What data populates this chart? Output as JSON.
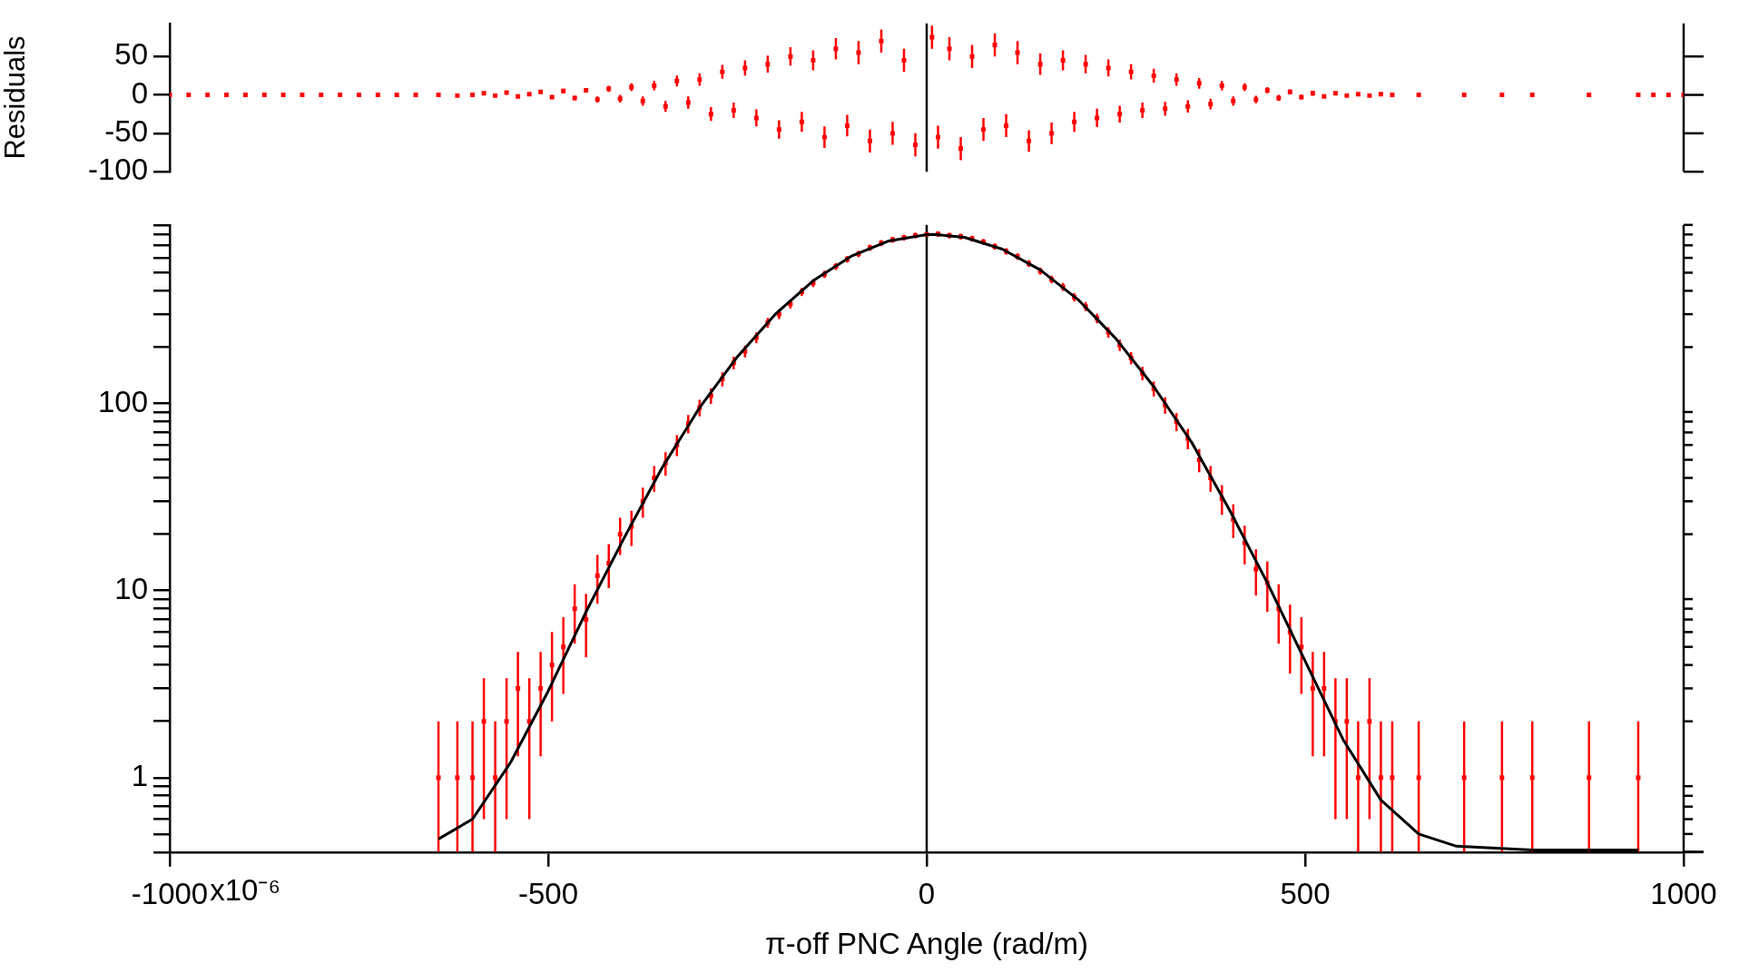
{
  "chart_data": [
    {
      "type": "scatter",
      "ylabel": "Residuals",
      "xlim": [
        -1000,
        1000
      ],
      "ylim": [
        -100,
        93
      ],
      "yticks": [
        -100,
        -50,
        0,
        50
      ],
      "tick_labels": "y",
      "grid": false,
      "marker": "square",
      "ref_lines": [
        {
          "axis": "x",
          "value": 0,
          "color": "#000000"
        }
      ],
      "series": [
        {
          "color": "#ff0000",
          "x": [
            -1000,
            -975,
            -950,
            -925,
            -900,
            -875,
            -850,
            -825,
            -800,
            -775,
            -750,
            -725,
            -700,
            -675,
            -645,
            -620,
            -600,
            -585,
            -570,
            -555,
            -540,
            -525,
            -510,
            -495,
            -480,
            -465,
            -450,
            -435,
            -420,
            -405,
            -390,
            -375,
            -360,
            -345,
            -330,
            -315,
            -300,
            -285,
            -270,
            -255,
            -240,
            -225,
            -210,
            -195,
            -180,
            -165,
            -150,
            -135,
            -120,
            -105,
            -90,
            -75,
            -60,
            -45,
            -30,
            -15,
            7,
            15,
            30,
            45,
            60,
            75,
            90,
            105,
            120,
            135,
            150,
            165,
            180,
            195,
            210,
            225,
            240,
            255,
            270,
            285,
            300,
            315,
            330,
            345,
            360,
            375,
            390,
            405,
            420,
            435,
            450,
            465,
            480,
            495,
            510,
            525,
            540,
            555,
            570,
            585,
            600,
            615,
            650,
            710,
            760,
            800,
            875,
            940,
            960,
            980,
            1000
          ],
          "values": [
            0,
            0,
            0,
            0,
            0,
            0,
            0,
            0,
            0,
            0,
            0,
            0,
            0,
            0,
            0,
            -1,
            0,
            2,
            -1,
            3,
            -2,
            1,
            4,
            -3,
            5,
            -4,
            6,
            -6,
            8,
            -5,
            10,
            -8,
            12,
            -15,
            18,
            -10,
            20,
            -25,
            30,
            -20,
            35,
            -30,
            40,
            -45,
            50,
            -35,
            45,
            -55,
            60,
            -40,
            55,
            -60,
            70,
            -50,
            45,
            -65,
            75,
            -55,
            60,
            -70,
            50,
            -45,
            65,
            -40,
            55,
            -60,
            40,
            -50,
            45,
            -35,
            40,
            -30,
            35,
            -25,
            30,
            -20,
            25,
            -18,
            20,
            -15,
            15,
            -12,
            12,
            -8,
            10,
            -6,
            6,
            -4,
            4,
            -3,
            2,
            -2,
            2,
            -1,
            1,
            -1,
            1,
            0,
            0,
            0,
            0,
            0,
            0,
            0,
            0,
            0,
            0
          ],
          "errors": [
            null,
            null,
            null,
            null,
            null,
            null,
            null,
            null,
            null,
            null,
            null,
            null,
            null,
            null,
            2,
            2,
            2,
            2,
            2,
            2,
            2,
            2,
            2,
            2,
            3,
            3,
            3,
            4,
            4,
            5,
            5,
            6,
            6,
            7,
            7,
            8,
            8,
            9,
            9,
            10,
            10,
            11,
            11,
            12,
            12,
            13,
            13,
            14,
            14,
            14,
            15,
            15,
            15,
            15,
            15,
            15,
            15,
            15,
            15,
            15,
            15,
            15,
            15,
            15,
            15,
            14,
            14,
            14,
            13,
            13,
            12,
            12,
            11,
            11,
            10,
            10,
            9,
            9,
            8,
            8,
            7,
            7,
            6,
            6,
            5,
            5,
            4,
            4,
            3,
            3,
            3,
            2,
            2,
            2,
            2,
            2,
            2,
            2,
            1,
            1,
            1,
            1,
            1,
            1,
            null,
            null,
            null
          ]
        }
      ]
    },
    {
      "type": "scatter",
      "xlabel": "π-off PNC Angle (rad/m)",
      "xlim": [
        -1000,
        1000
      ],
      "xticks": [
        -1000,
        -500,
        0,
        500,
        1000
      ],
      "annotations": [
        "x10⁻⁶"
      ],
      "ylim": [
        0.4,
        900
      ],
      "log": "y",
      "grid": false,
      "marker": "square",
      "yticks": [
        {
          "value": 0.4,
          "label": null
        },
        {
          "value": 0.5,
          "label": null
        },
        {
          "value": 0.6,
          "label": null
        },
        {
          "value": 0.7,
          "label": null
        },
        {
          "value": 0.8,
          "label": null
        },
        {
          "value": 0.9,
          "label": null
        },
        1,
        {
          "value": 2,
          "label": null
        },
        {
          "value": 3,
          "label": null
        },
        {
          "value": 4,
          "label": null
        },
        {
          "value": 5,
          "label": null
        },
        {
          "value": 6,
          "label": null
        },
        {
          "value": 7,
          "label": null
        },
        {
          "value": 8,
          "label": null
        },
        {
          "value": 9,
          "label": null
        },
        10,
        {
          "value": 20,
          "label": null
        },
        {
          "value": 30,
          "label": null
        },
        {
          "value": 40,
          "label": null
        },
        {
          "value": 50,
          "label": null
        },
        {
          "value": 60,
          "label": null
        },
        {
          "value": 70,
          "label": null
        },
        {
          "value": 80,
          "label": null
        },
        {
          "value": 90,
          "label": null
        },
        100,
        {
          "value": 200,
          "label": null
        },
        {
          "value": 300,
          "label": null
        },
        {
          "value": 400,
          "label": null
        },
        {
          "value": 500,
          "label": null
        },
        {
          "value": 600,
          "label": null
        },
        {
          "value": 700,
          "label": null
        },
        {
          "value": 800,
          "label": null
        },
        {
          "value": 900,
          "label": null
        }
      ],
      "ref_lines": [
        {
          "axis": "x",
          "value": 0,
          "color": "#000000"
        }
      ],
      "series": [
        {
          "color": "#ff0000",
          "x": [
            -645,
            -620,
            -600,
            -585,
            -570,
            -555,
            -540,
            -525,
            -510,
            -495,
            -480,
            -465,
            -450,
            -435,
            -420,
            -405,
            -390,
            -375,
            -360,
            -345,
            -330,
            -315,
            -300,
            -285,
            -270,
            -255,
            -240,
            -225,
            -210,
            -195,
            -180,
            -165,
            -150,
            -135,
            -120,
            -105,
            -90,
            -75,
            -60,
            -45,
            -30,
            -15,
            0,
            15,
            30,
            45,
            60,
            75,
            90,
            105,
            120,
            135,
            150,
            165,
            180,
            195,
            210,
            225,
            240,
            255,
            270,
            285,
            300,
            315,
            330,
            345,
            360,
            375,
            390,
            405,
            420,
            435,
            450,
            465,
            480,
            495,
            510,
            525,
            540,
            555,
            570,
            585,
            600,
            615,
            650,
            710,
            760,
            800,
            875,
            940
          ],
          "values": [
            1,
            1,
            1,
            2,
            1,
            2,
            3,
            2,
            3,
            4,
            5,
            8,
            7,
            12,
            14,
            20,
            22,
            30,
            40,
            48,
            60,
            78,
            95,
            110,
            135,
            165,
            190,
            225,
            270,
            300,
            340,
            395,
            440,
            490,
            540,
            590,
            630,
            680,
            720,
            750,
            770,
            790,
            800,
            805,
            790,
            780,
            760,
            730,
            690,
            650,
            610,
            560,
            510,
            460,
            420,
            370,
            330,
            285,
            240,
            205,
            175,
            145,
            120,
            98,
            80,
            65,
            50,
            40,
            31,
            24,
            18,
            13,
            11,
            8,
            6,
            5,
            3,
            3,
            2,
            2,
            1,
            2,
            1,
            1,
            1,
            1,
            1,
            1,
            1,
            1
          ],
          "errors": [
            [
              0.4,
              2
            ],
            [
              0.4,
              2
            ],
            [
              0.4,
              2
            ],
            1.4,
            [
              0.4,
              2
            ],
            1.4,
            1.7,
            1.4,
            1.7,
            2,
            2.2,
            2.8,
            2.6,
            3.5,
            3.7,
            4.5,
            4.7,
            5.5,
            6.3,
            6.9,
            7.7,
            8.8,
            9.7,
            10.5,
            11.6,
            12.8,
            13.8,
            15,
            16.4,
            17.3,
            18.4,
            19.9,
            21,
            22.1,
            23.2,
            24.3,
            25.1,
            26.1,
            26.8,
            27.4,
            27.7,
            28.1,
            28.3,
            28.4,
            28.1,
            27.9,
            27.6,
            27,
            26.3,
            25.5,
            24.7,
            23.7,
            22.6,
            21.4,
            20.5,
            19.2,
            18.2,
            16.9,
            15.5,
            14.3,
            13.2,
            12,
            11,
            9.9,
            8.9,
            8.1,
            7.1,
            6.3,
            5.6,
            4.9,
            4.2,
            3.6,
            3.3,
            2.8,
            2.4,
            2.2,
            1.7,
            1.7,
            1.4,
            1.4,
            [
              0.4,
              2
            ],
            1.4,
            [
              0.4,
              2
            ],
            [
              0.4,
              2
            ],
            [
              0.4,
              2
            ],
            [
              0.4,
              2
            ],
            [
              0.4,
              2
            ],
            [
              0.4,
              2
            ],
            [
              0.4,
              2
            ],
            [
              0.4,
              2
            ]
          ]
        },
        {
          "type": "line",
          "color": "#000000",
          "marker": "none",
          "x": [
            -645,
            -600,
            -550,
            -500,
            -450,
            -400,
            -350,
            -300,
            -250,
            -200,
            -150,
            -100,
            -50,
            0,
            10,
            50,
            100,
            150,
            200,
            250,
            300,
            350,
            400,
            450,
            500,
            550,
            600,
            650,
            700,
            800,
            940
          ],
          "values": [
            0.47,
            0.6,
            1.2,
            2.9,
            7.7,
            19,
            45,
            95,
            178,
            300,
            453,
            611,
            739,
            798,
            800,
            772,
            668,
            517,
            359,
            222,
            123,
            62,
            27,
            11,
            4.2,
            1.6,
            0.76,
            0.5,
            0.43,
            0.41,
            0.41
          ]
        }
      ]
    }
  ]
}
